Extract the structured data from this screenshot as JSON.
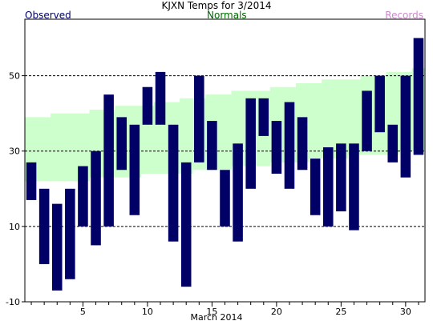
{
  "chart_data": {
    "type": "bar",
    "title": "KJXN Temps for 3/2014",
    "xlabel": "March 2014",
    "ylabel": "",
    "ylim": [
      -10,
      65
    ],
    "xlim": [
      0.5,
      31.5
    ],
    "yticks": [
      -10,
      10,
      30,
      50
    ],
    "xticks": [
      5,
      10,
      15,
      20,
      25,
      30
    ],
    "grid_lines_y": [
      10,
      30,
      50
    ],
    "legend": [
      "Observed",
      "Normals",
      "Records"
    ],
    "colors": {
      "observed": "#000066",
      "normals": "#ccffcc",
      "records": "#cc88cc",
      "observed_label": "#000066",
      "normals_label": "#006600"
    },
    "days": [
      1,
      2,
      3,
      4,
      5,
      6,
      7,
      8,
      9,
      10,
      11,
      12,
      13,
      14,
      15,
      16,
      17,
      18,
      19,
      20,
      21,
      22,
      23,
      24,
      25,
      26,
      27,
      28,
      29,
      30,
      31
    ],
    "normals_high": [
      39,
      39,
      40,
      40,
      40,
      41,
      41,
      42,
      42,
      42,
      43,
      43,
      44,
      44,
      45,
      45,
      46,
      46,
      46,
      47,
      47,
      48,
      48,
      49,
      49,
      49,
      50,
      50,
      51,
      51,
      52
    ],
    "normals_low": [
      22,
      22,
      22,
      22,
      22,
      23,
      23,
      23,
      23,
      24,
      24,
      24,
      24,
      25,
      25,
      25,
      26,
      26,
      26,
      27,
      27,
      27,
      28,
      28,
      28,
      29,
      29,
      29,
      29,
      30,
      30
    ],
    "observed_high": [
      27,
      20,
      16,
      20,
      26,
      30,
      45,
      39,
      37,
      47,
      51,
      37,
      27,
      50,
      38,
      25,
      32,
      44,
      44,
      38,
      43,
      39,
      28,
      31,
      32,
      32,
      46,
      50,
      37,
      50,
      60
    ],
    "observed_low": [
      17,
      0,
      -7,
      -4,
      10,
      5,
      10,
      25,
      13,
      37,
      37,
      6,
      -6,
      27,
      25,
      10,
      6,
      20,
      34,
      24,
      20,
      25,
      13,
      10,
      14,
      9,
      30,
      35,
      27,
      23,
      29
    ]
  }
}
